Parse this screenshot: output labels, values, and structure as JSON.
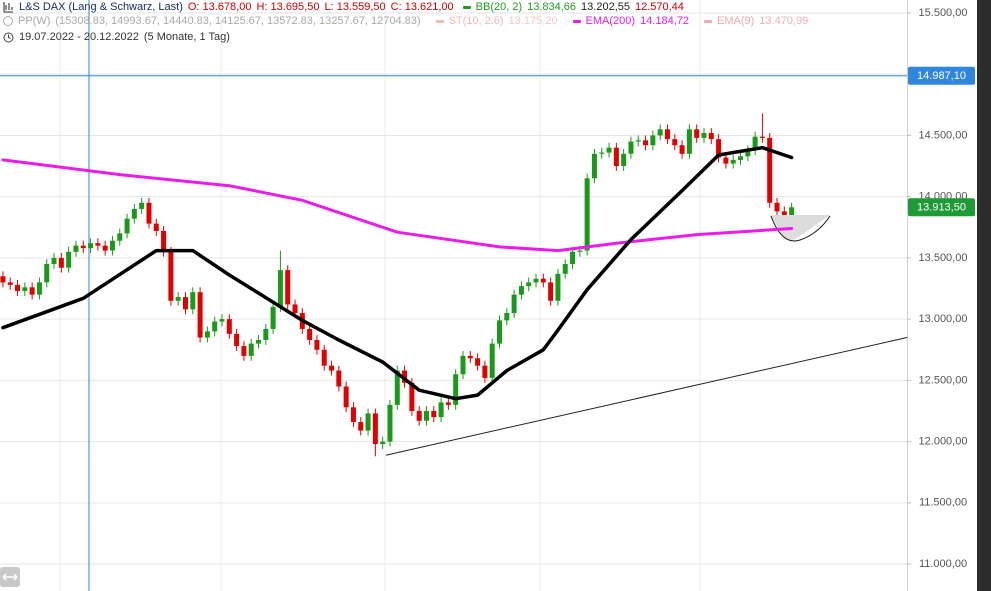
{
  "chart_data": {
    "type": "candlestick",
    "title": "L&S DAX (Lang & Schwarz, Last)",
    "ohlc_readout": [
      "O: 13.678,00",
      "H: 13.695,50",
      "L: 13.559,50",
      "C: 13.621,00"
    ],
    "ohlc_color": "#d40000",
    "indicators": [
      {
        "name": "BB(20, 2)",
        "color": "#1f9e1f",
        "readouts": [
          {
            "text": "13.834,66",
            "color": "#1f9e1f"
          },
          {
            "text": "13.202,55",
            "color": "#222222"
          },
          {
            "text": "12.570,44",
            "color": "#d40000"
          }
        ]
      },
      {
        "name": "PP(W)",
        "color": "#aaaaaa",
        "readouts": [
          {
            "text": "(15308.83, 14993.67, 14440.83, 14125.67, 13572.83, 13257.67, 12704.83)",
            "color": "#aaaaaa"
          }
        ]
      },
      {
        "name": "ST(10, 2.6)",
        "color": "#f6b8b8",
        "readouts": [
          {
            "text": "13.175,20",
            "color": "#f6c8c8"
          }
        ]
      },
      {
        "name": "EMA(200)",
        "color": "#e81ee8",
        "readouts": [
          {
            "text": "14.184,72",
            "color": "#e81ee8"
          }
        ]
      },
      {
        "name": "EMA(9)",
        "color": "#f5a8a8",
        "readouts": [
          {
            "text": "13.470,99",
            "color": "#f5b0b0"
          }
        ]
      }
    ],
    "date_range": "19.07.2022 - 20.12.2022",
    "period": "(5 Monate, 1 Tag)",
    "open": [
      13350,
      13300,
      13280,
      13230,
      13260,
      13200,
      13300,
      13450,
      13500,
      13420,
      13550,
      13600,
      13580,
      13620,
      13600,
      13560,
      13640,
      13700,
      13820,
      13900,
      13950,
      13780,
      13720,
      13550,
      13150,
      13180,
      13080,
      13220,
      12850,
      12900,
      12980,
      13000,
      12880,
      12780,
      12700,
      12800,
      12830,
      12920,
      13100,
      13400,
      13120,
      13050,
      12920,
      12830,
      12750,
      12620,
      12580,
      12450,
      12280,
      12160,
      12090,
      12230,
      11980,
      12000,
      12300,
      12580,
      12480,
      12250,
      12170,
      12250,
      12200,
      12320,
      12300,
      12550,
      12700,
      12680,
      12620,
      12520,
      12800,
      12990,
      13050,
      13200,
      13270,
      13300,
      13330,
      13300,
      13150,
      13370,
      13450,
      13550,
      13560,
      14150,
      14350,
      14360,
      14400,
      14250,
      14350,
      14450,
      14460,
      14420,
      14500,
      14550,
      14470,
      14420,
      14350,
      14550,
      14480,
      14520,
      14470,
      14320,
      14270,
      14300,
      14330,
      14380,
      14490,
      14480,
      13950,
      13880,
      13780
    ],
    "high": [
      13390,
      13340,
      13320,
      13300,
      13300,
      13340,
      13490,
      13540,
      13540,
      13590,
      13640,
      13640,
      13660,
      13660,
      13640,
      13680,
      13740,
      13860,
      13940,
      13990,
      13990,
      13820,
      13760,
      13590,
      13220,
      13220,
      13260,
      13260,
      12940,
      13020,
      13040,
      13040,
      12920,
      12820,
      12840,
      12870,
      12960,
      13140,
      13560,
      13440,
      13160,
      13090,
      12960,
      12870,
      12790,
      12660,
      12620,
      12490,
      12320,
      12200,
      12270,
      12270,
      12040,
      12340,
      12620,
      12620,
      12520,
      12290,
      12290,
      12290,
      12360,
      12360,
      12590,
      12740,
      12740,
      12720,
      12660,
      12840,
      13030,
      13090,
      13240,
      13310,
      13340,
      13370,
      13370,
      13340,
      13410,
      13490,
      13590,
      13600,
      14190,
      14390,
      14400,
      14440,
      14440,
      14390,
      14490,
      14500,
      14500,
      14540,
      14590,
      14590,
      14510,
      14460,
      14590,
      14590,
      14560,
      14560,
      14510,
      14360,
      14340,
      14370,
      14420,
      14530,
      14680,
      14520,
      13990,
      13920,
      13950
    ],
    "low": [
      13260,
      13240,
      13190,
      13190,
      13160,
      13160,
      13260,
      13410,
      13380,
      13380,
      13510,
      13540,
      13540,
      13560,
      13520,
      13520,
      13600,
      13660,
      13780,
      13860,
      13740,
      13680,
      13510,
      13110,
      13110,
      13040,
      13040,
      12810,
      12810,
      12860,
      12940,
      12840,
      12740,
      12660,
      12660,
      12760,
      12790,
      12880,
      13060,
      13080,
      13010,
      12880,
      12790,
      12710,
      12580,
      12540,
      12410,
      12240,
      12120,
      12050,
      12050,
      11880,
      11940,
      11960,
      12260,
      12440,
      12210,
      12130,
      12130,
      12160,
      12160,
      12260,
      12260,
      12510,
      12640,
      12580,
      12480,
      12480,
      12760,
      12950,
      13010,
      13160,
      13230,
      13260,
      13260,
      13110,
      13110,
      13330,
      13410,
      13510,
      13520,
      14110,
      14310,
      14320,
      14210,
      14210,
      14310,
      14410,
      14380,
      14380,
      14460,
      14430,
      14380,
      14310,
      14310,
      14440,
      14440,
      14430,
      14280,
      14230,
      14230,
      14260,
      14290,
      14340,
      14440,
      13910,
      13840,
      13740,
      13740
    ],
    "close": [
      13300,
      13280,
      13230,
      13260,
      13200,
      13300,
      13450,
      13500,
      13420,
      13550,
      13600,
      13580,
      13620,
      13600,
      13560,
      13640,
      13700,
      13820,
      13900,
      13950,
      13780,
      13720,
      13550,
      13150,
      13180,
      13080,
      13220,
      12850,
      12900,
      12980,
      13000,
      12880,
      12780,
      12700,
      12800,
      12830,
      12920,
      13100,
      13400,
      13120,
      13050,
      12920,
      12830,
      12750,
      12620,
      12580,
      12450,
      12280,
      12160,
      12090,
      12230,
      11980,
      12000,
      12300,
      12580,
      12480,
      12250,
      12170,
      12250,
      12200,
      12320,
      12300,
      12550,
      12700,
      12680,
      12620,
      12520,
      12800,
      12990,
      13050,
      13200,
      13270,
      13300,
      13330,
      13300,
      13150,
      13370,
      13450,
      13550,
      13560,
      14150,
      14350,
      14360,
      14400,
      14250,
      14350,
      14450,
      14460,
      14420,
      14500,
      14550,
      14470,
      14420,
      14350,
      14550,
      14480,
      14520,
      14470,
      14320,
      14270,
      14300,
      14330,
      14380,
      14490,
      14480,
      13950,
      13880,
      13780,
      13913.5
    ],
    "up_color": "#1a9a1a",
    "down_color": "#e00000",
    "xlim": [
      -0.4,
      123.8
    ],
    "ylim": [
      10780,
      15606
    ],
    "yticks": [
      {
        "value": 11000,
        "label": "11.000,00"
      },
      {
        "value": 11500,
        "label": "11.500,00"
      },
      {
        "value": 12000,
        "label": "12.000,00"
      },
      {
        "value": 12500,
        "label": "12.500,00"
      },
      {
        "value": 13000,
        "label": "13.000,00"
      },
      {
        "value": 13500,
        "label": "13.500,00"
      },
      {
        "value": 14000,
        "label": "14.000,00"
      },
      {
        "value": 14500,
        "label": "14.500,00"
      },
      {
        "value": 15000,
        "label": "15.000,00"
      },
      {
        "value": 15500,
        "label": "15.500,00"
      }
    ],
    "grid": true,
    "lines": [
      {
        "color": "#e81ee8",
        "width": 3,
        "x": [
          0,
          16,
          31,
          41,
          54,
          68,
          76,
          84,
          95,
          108
        ],
        "values": [
          14300,
          14180,
          14090,
          13970,
          13710,
          13590,
          13560,
          13620,
          13690,
          13740
        ]
      },
      {
        "color": "#000000",
        "width": 3.5,
        "x": [
          0,
          11,
          21,
          26,
          31,
          41,
          46,
          52,
          57,
          62,
          65,
          69,
          74,
          76,
          80,
          86,
          93,
          98,
          104,
          108
        ],
        "values": [
          12930,
          13170,
          13560,
          13560,
          13360,
          12990,
          12830,
          12650,
          12420,
          12350,
          12380,
          12580,
          12750,
          12910,
          13240,
          13650,
          14050,
          14340,
          14400,
          14320
        ]
      },
      {
        "color": "#222222",
        "width": 1,
        "x": [
          52.5,
          123.8
        ],
        "values": [
          11890,
          12850
        ]
      }
    ],
    "hline": {
      "value": 14987.1,
      "label": "14.987,10",
      "color": "#2f86dc"
    },
    "last_price": {
      "value": 13913.5,
      "label": "13.913,50",
      "color": "#1e9a36"
    }
  }
}
